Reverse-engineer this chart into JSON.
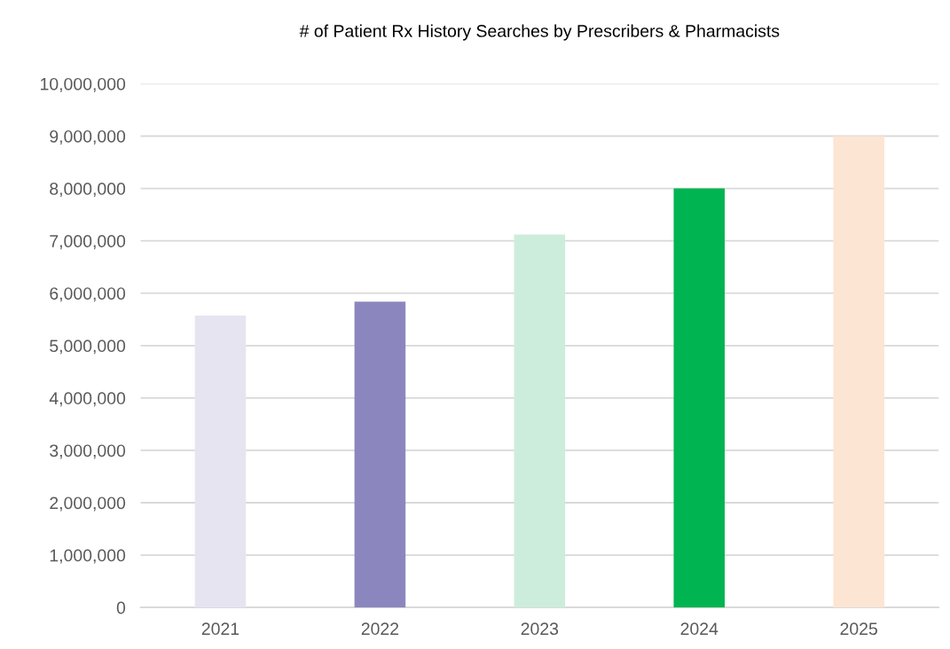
{
  "chart_data": {
    "type": "bar",
    "title": "# of Patient Rx History Searches by Prescribers & Pharmacists",
    "categories": [
      "2021",
      "2022",
      "2023",
      "2024",
      "2025"
    ],
    "values": [
      5570000,
      5840000,
      7120000,
      8000000,
      9000000
    ],
    "colors": [
      "#e6e4f1",
      "#8b87be",
      "#cdeddc",
      "#00b451",
      "#fde5d3"
    ],
    "ylim": [
      0,
      10000000
    ],
    "yticks": [
      {
        "value": 0,
        "label": "0"
      },
      {
        "value": 1000000,
        "label": "1,000,000"
      },
      {
        "value": 2000000,
        "label": "2,000,000"
      },
      {
        "value": 3000000,
        "label": "3,000,000"
      },
      {
        "value": 4000000,
        "label": "4,000,000"
      },
      {
        "value": 5000000,
        "label": "5,000,000"
      },
      {
        "value": 6000000,
        "label": "6,000,000"
      },
      {
        "value": 7000000,
        "label": "7,000,000"
      },
      {
        "value": 8000000,
        "label": "8,000,000"
      },
      {
        "value": 9000000,
        "label": "9,000,000"
      },
      {
        "value": 10000000,
        "label": "10,000,000"
      }
    ],
    "grid": "y"
  }
}
